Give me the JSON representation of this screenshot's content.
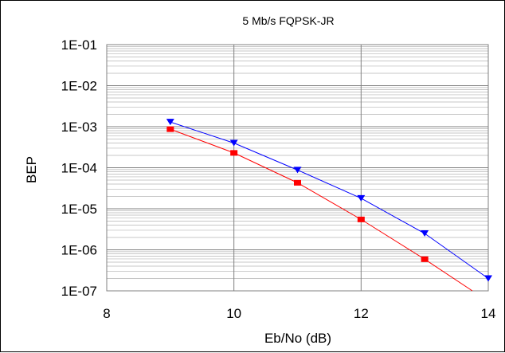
{
  "chart_data": {
    "type": "line",
    "title": "5 Mb/s FQPSK-JR",
    "xlabel": "Eb/No (dB)",
    "ylabel": "BEP",
    "xlim": [
      8,
      14
    ],
    "ylim": [
      1e-07,
      0.1
    ],
    "yscale": "log",
    "x_ticks": [
      "8",
      "10",
      "12",
      "14"
    ],
    "y_ticks": [
      "1E-01",
      "1E-02",
      "1E-03",
      "1E-04",
      "1E-05",
      "1E-06",
      "1E-07"
    ],
    "grid": true,
    "legend": "none",
    "series": [
      {
        "color": "#0000ff",
        "marker": "triangle-down",
        "x": [
          9,
          10,
          11,
          12,
          13,
          14
        ],
        "y": [
          0.0013,
          0.0004,
          8.8e-05,
          1.8e-05,
          2.5e-06,
          2e-07
        ]
      },
      {
        "color": "#ff0000",
        "marker": "square",
        "x": [
          9,
          10,
          11,
          12,
          13,
          13.75
        ],
        "y": [
          0.00087,
          0.00023,
          4.3e-05,
          5.5e-06,
          5.9e-07,
          1e-07
        ],
        "marker_points": 5
      }
    ]
  }
}
